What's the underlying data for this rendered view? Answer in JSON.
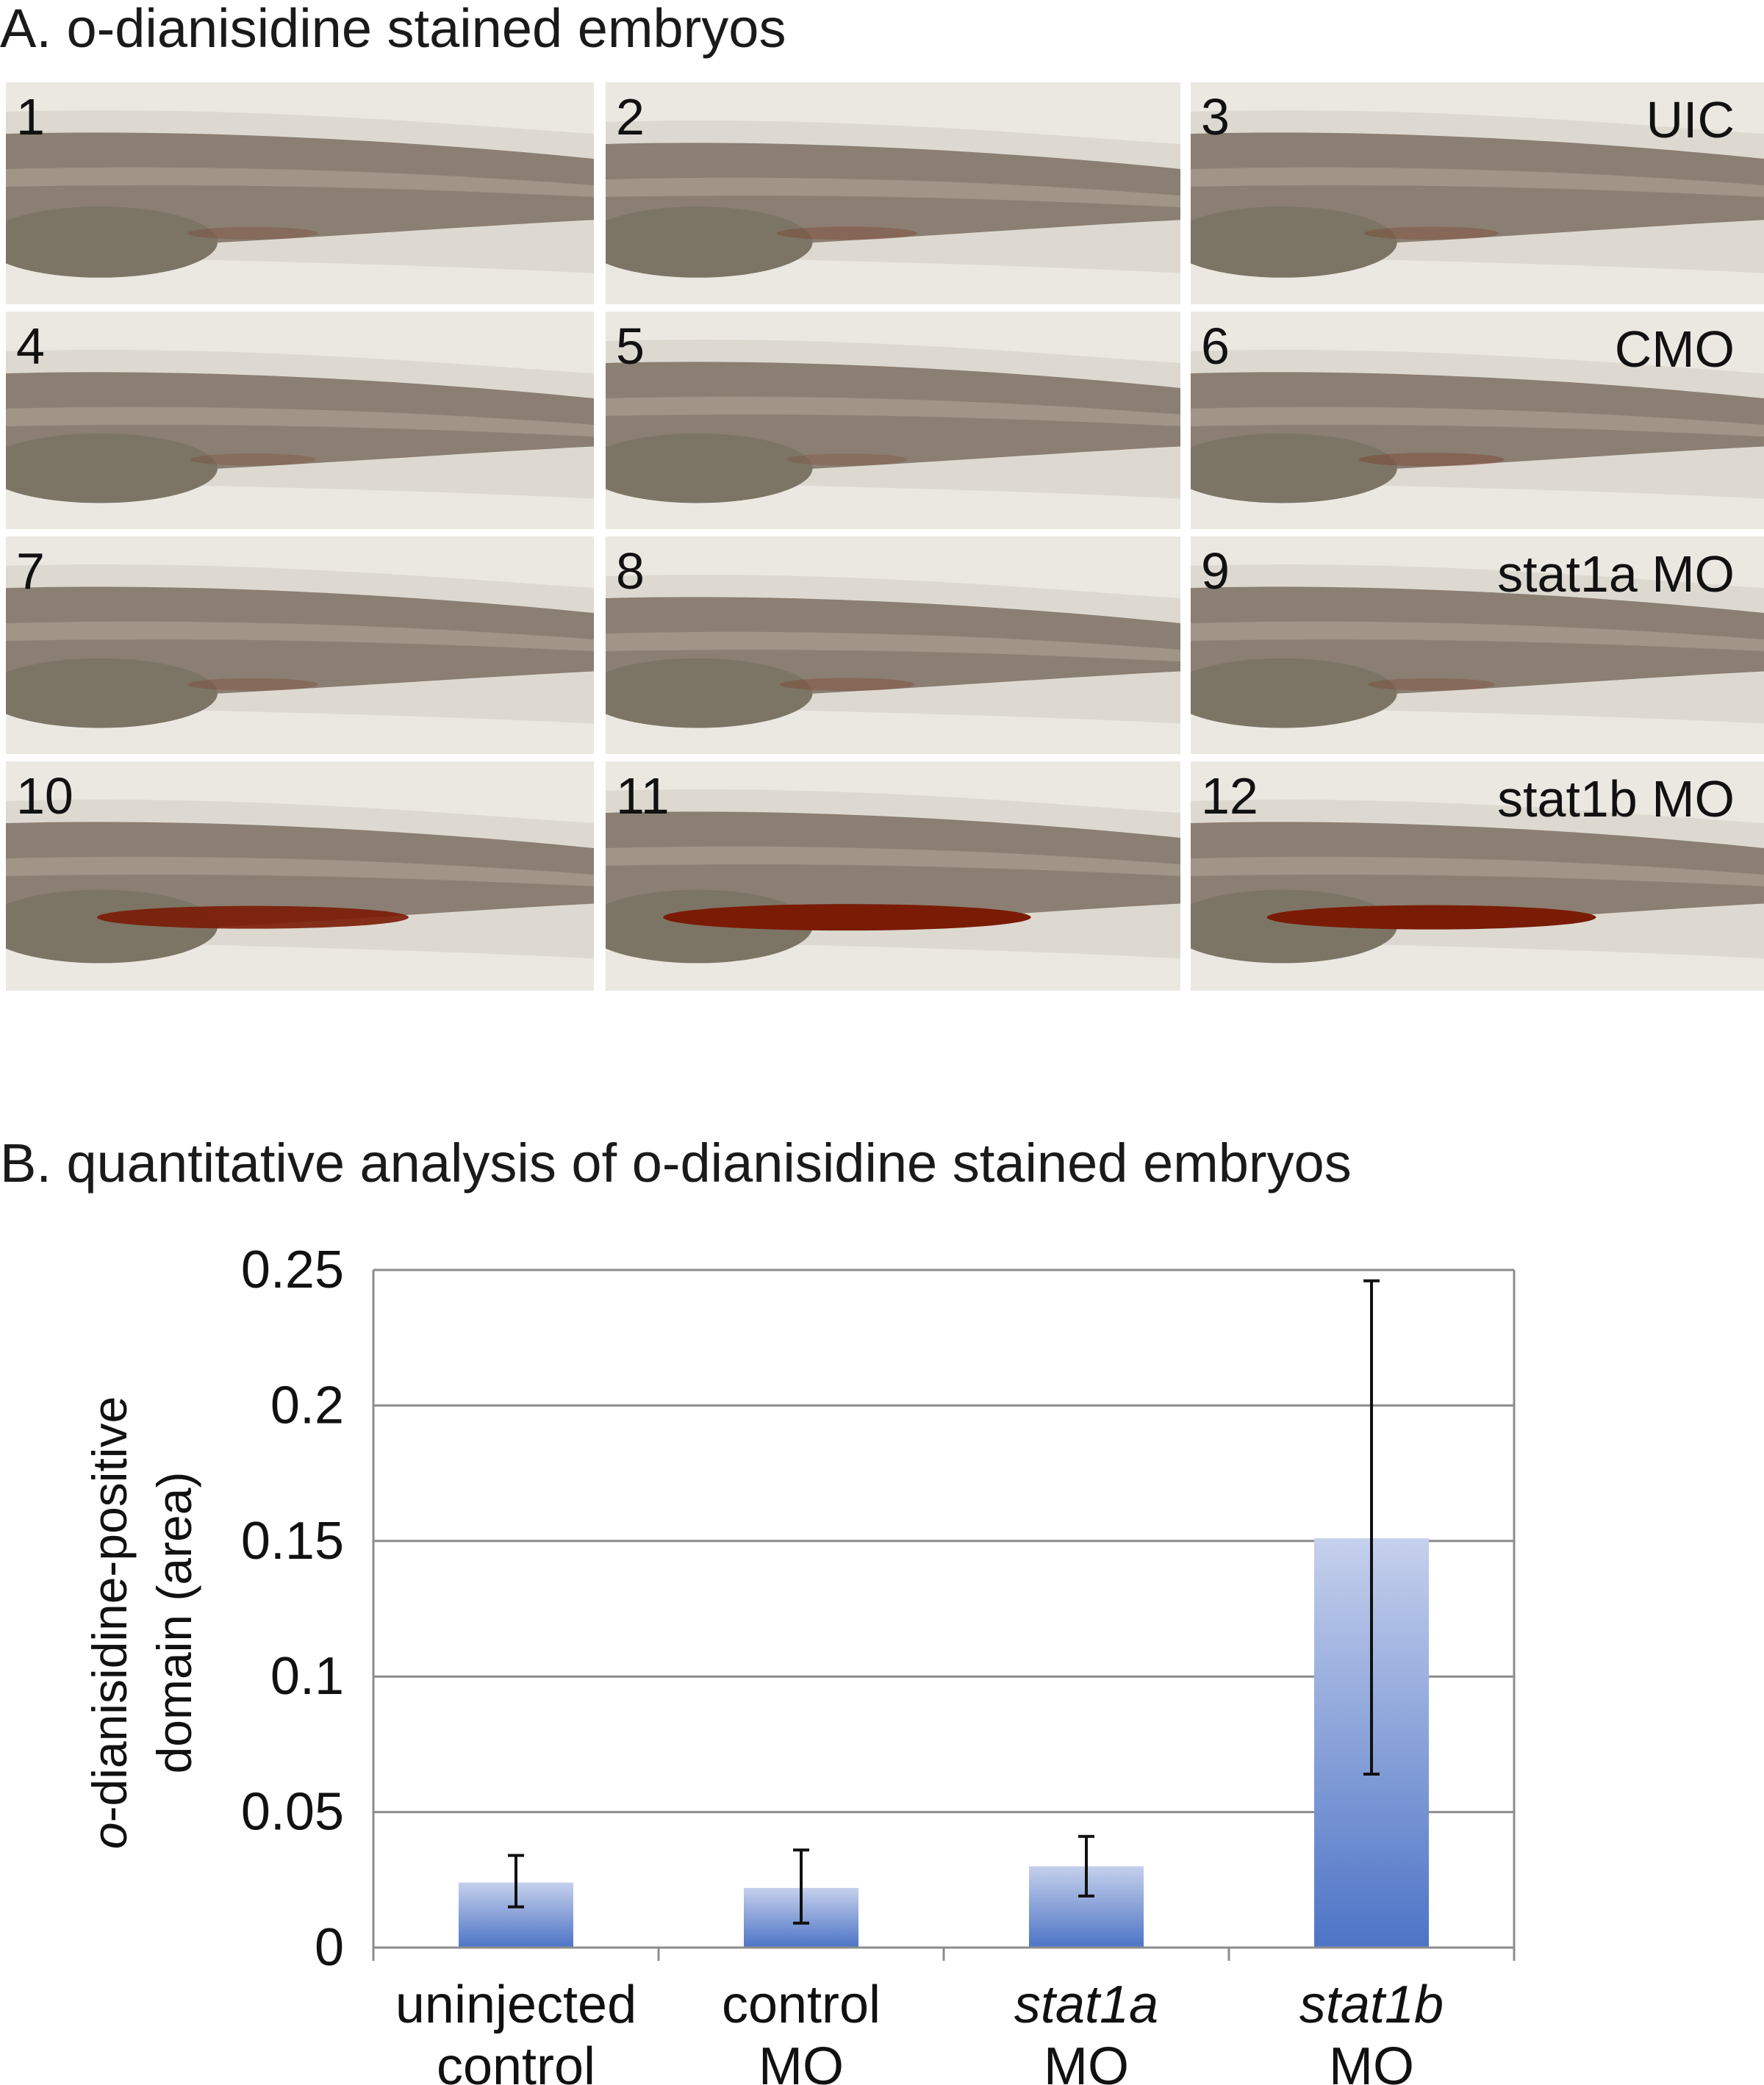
{
  "figure_a": {
    "title": "A. o-dianisidine stained embryos",
    "panels": [
      {
        "number": "1",
        "group": ""
      },
      {
        "number": "2",
        "group": ""
      },
      {
        "number": "3",
        "group": "UIC"
      },
      {
        "number": "4",
        "group": ""
      },
      {
        "number": "5",
        "group": ""
      },
      {
        "number": "6",
        "group": "CMO"
      },
      {
        "number": "7",
        "group": ""
      },
      {
        "number": "8",
        "group": ""
      },
      {
        "number": "9",
        "group": "stat1a MO"
      },
      {
        "number": "10",
        "group": ""
      },
      {
        "number": "11",
        "group": ""
      },
      {
        "number": "12",
        "group": "stat1b MO"
      }
    ],
    "colors": {
      "background": "#ebe8e2",
      "embryo": "#8a7f72",
      "yolk": "#7c7565",
      "stain": "#7a1b06"
    },
    "stain_strength": [
      0.05,
      0.1,
      0.08,
      0.03,
      0.02,
      0.12,
      0.05,
      0.08,
      0.05,
      0.75,
      1.0,
      0.85
    ]
  },
  "figure_b": {
    "title": "B. quantitative analysis of o-dianisidine stained embryos"
  },
  "chart_data": {
    "type": "bar",
    "ylabel_line1": "o-dianisidine-positive",
    "ylabel_line1_italic": "o",
    "ylabel_line1_rest": "-dianisidine-positive",
    "ylabel_line2": "domain (area)",
    "ylim": [
      0,
      0.25
    ],
    "yticks": [
      {
        "value": 0,
        "label": "0"
      },
      {
        "value": 0.05,
        "label": "0.05"
      },
      {
        "value": 0.1,
        "label": "0.1"
      },
      {
        "value": 0.15,
        "label": "0.15"
      },
      {
        "value": 0.2,
        "label": "0.2"
      },
      {
        "value": 0.25,
        "label": "0.25"
      }
    ],
    "grid": true,
    "categories": [
      {
        "line1": "uninjected",
        "line2": "control",
        "italic": false
      },
      {
        "line1": "control",
        "line2": "MO",
        "italic": false
      },
      {
        "line1": "stat1a",
        "line2": "MO",
        "italic": true
      },
      {
        "line1": "stat1b",
        "line2": "MO",
        "italic": true
      }
    ],
    "values": [
      0.024,
      0.022,
      0.03,
      0.151
    ],
    "error_low": [
      0.015,
      0.009,
      0.019,
      0.064
    ],
    "error_high": [
      0.034,
      0.036,
      0.041,
      0.246
    ],
    "colors": {
      "bar_top": "#c5d0ec",
      "bar_bottom": "#4d74c6",
      "grid": "#8c8c8c",
      "error": "#111111"
    }
  }
}
